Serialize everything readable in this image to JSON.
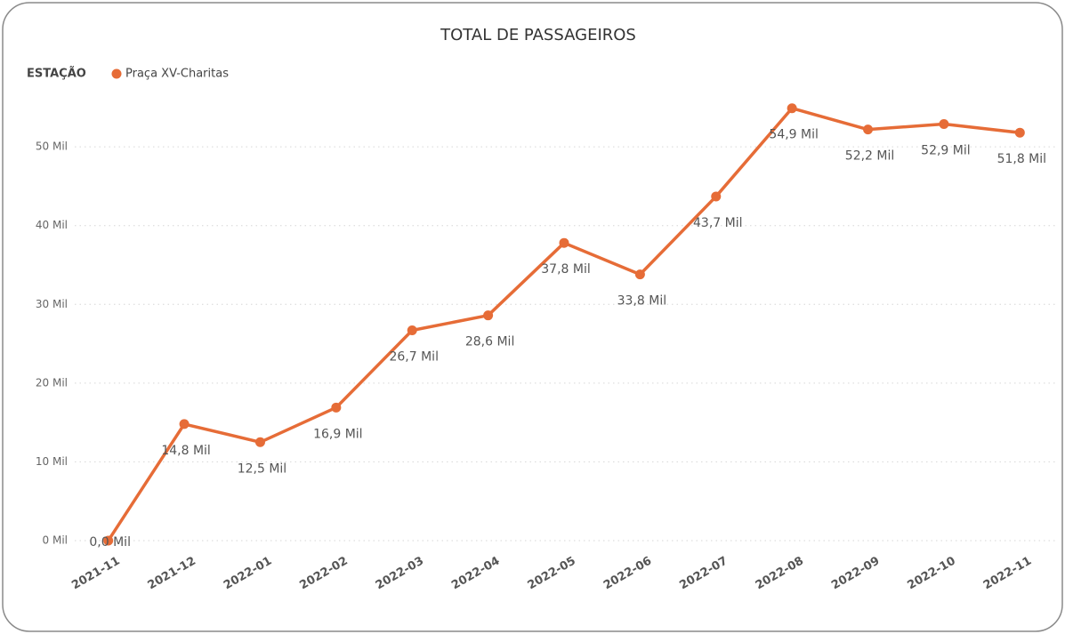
{
  "chart_data": {
    "type": "line",
    "title": "TOTAL DE PASSAGEIROS",
    "legend_title": "ESTAÇÃO",
    "categories": [
      "2021-11",
      "2021-12",
      "2022-01",
      "2022-02",
      "2022-03",
      "2022-04",
      "2022-05",
      "2022-06",
      "2022-07",
      "2022-08",
      "2022-09",
      "2022-10",
      "2022-11"
    ],
    "series": [
      {
        "name": "Praça XV-Charitas",
        "color": "#e66c37",
        "values": [
          0,
          14800,
          12500,
          16900,
          26700,
          28600,
          37800,
          33800,
          43700,
          54900,
          52200,
          52900,
          51800
        ],
        "value_labels": [
          "0,0 Mil",
          "14,8 Mil",
          "12,5 Mil",
          "16,9 Mil",
          "26,7 Mil",
          "28,6 Mil",
          "37,8 Mil",
          "33,8 Mil",
          "43,7 Mil",
          "54,9 Mil",
          "52,2 Mil",
          "52,9 Mil",
          "51,8 Mil"
        ]
      }
    ],
    "ylim": [
      0,
      56000
    ],
    "yticks": [
      {
        "value": 0,
        "label": "0 Mil"
      },
      {
        "value": 10000,
        "label": "10 Mil"
      },
      {
        "value": 20000,
        "label": "20 Mil"
      },
      {
        "value": 30000,
        "label": "30 Mil"
      },
      {
        "value": 40000,
        "label": "40 Mil"
      },
      {
        "value": 50000,
        "label": "50 Mil"
      }
    ],
    "grid": true,
    "legend": "top-left"
  }
}
